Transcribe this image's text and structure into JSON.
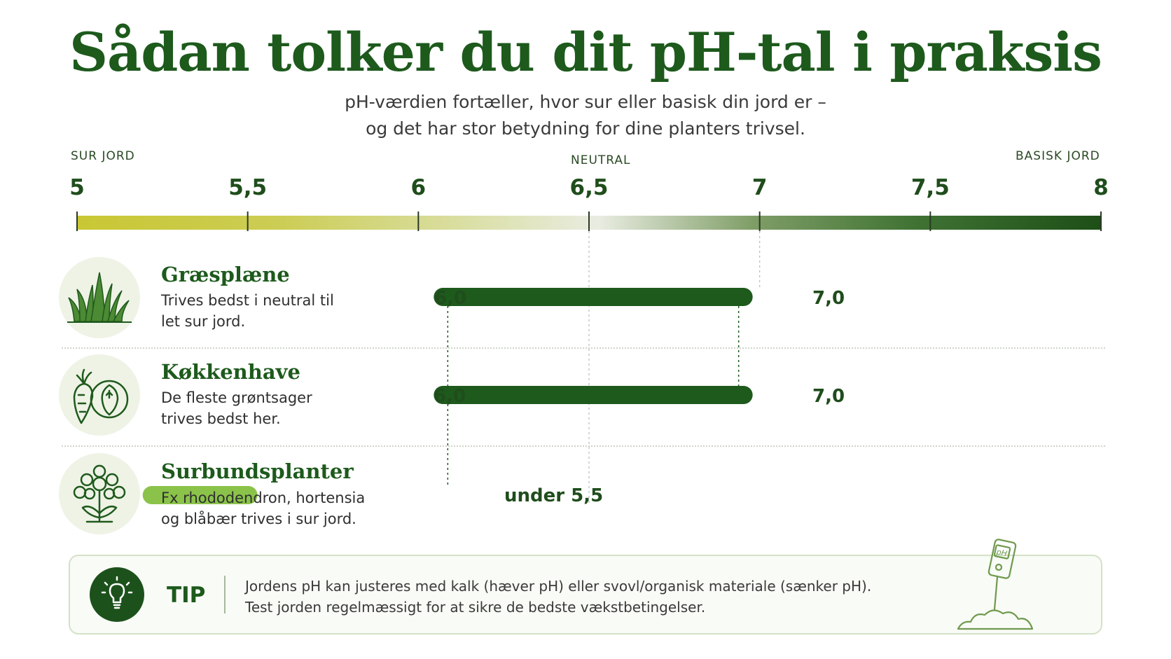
{
  "title": "Sådan tolker du dit pH-tal i praksis",
  "subtitle": [
    "pH-værdien fortæller, hvor sur eller basisk din jord er –",
    "og det har stor betydning for dine planters trivsel."
  ],
  "scale": {
    "left_label": "SUR JORD",
    "center_label": "NEUTRAL",
    "right_label": "BASISK JORD",
    "min": 5,
    "max": 8,
    "ticks": [
      {
        "value": 5,
        "label": "5"
      },
      {
        "value": 5.5,
        "label": "5,5"
      },
      {
        "value": 6,
        "label": "6"
      },
      {
        "value": 6.5,
        "label": "6,5"
      },
      {
        "value": 7,
        "label": "7"
      },
      {
        "value": 7.5,
        "label": "7,5"
      },
      {
        "value": 8,
        "label": "8"
      }
    ],
    "colors": {
      "acid": "#c9c734",
      "neutral": "#e9ece1",
      "basic": "#1d4f17"
    }
  },
  "rows": [
    {
      "icon": "grass-icon",
      "title": "Græsplæne",
      "desc": [
        "Trives bedst i neutral til",
        "let sur jord."
      ],
      "min_label": "6,0",
      "max_label": "7,0",
      "ph_min": 6.0,
      "ph_max": 7.0,
      "color": "#1d5a1c"
    },
    {
      "icon": "vegetables-icon",
      "title": "Køkkenhave",
      "desc": [
        "De fleste grøntsager",
        "trives bedst her."
      ],
      "min_label": "6,0",
      "max_label": "7,0",
      "ph_min": 6.0,
      "ph_max": 7.0,
      "color": "#1d5a1c"
    },
    {
      "icon": "flower-icon",
      "title": "Surbundsplanter",
      "desc": [
        "Fx rhododendron, hortensia",
        "og blåbær trives i sur jord."
      ],
      "label": "under 5,5",
      "ph_max": 5.5,
      "color": "#8bc34a"
    }
  ],
  "tip": {
    "icon": "lightbulb-icon",
    "label": "TIP",
    "lines": [
      "Jordens pH kan justeres med kalk (hæver pH) eller svovl/organisk materiale (sænker pH).",
      "Test jorden regelmæssigt for at sikre de bedste vækstbetingelser."
    ],
    "illustration": "ph-meter-icon",
    "meter_text": "pH"
  }
}
